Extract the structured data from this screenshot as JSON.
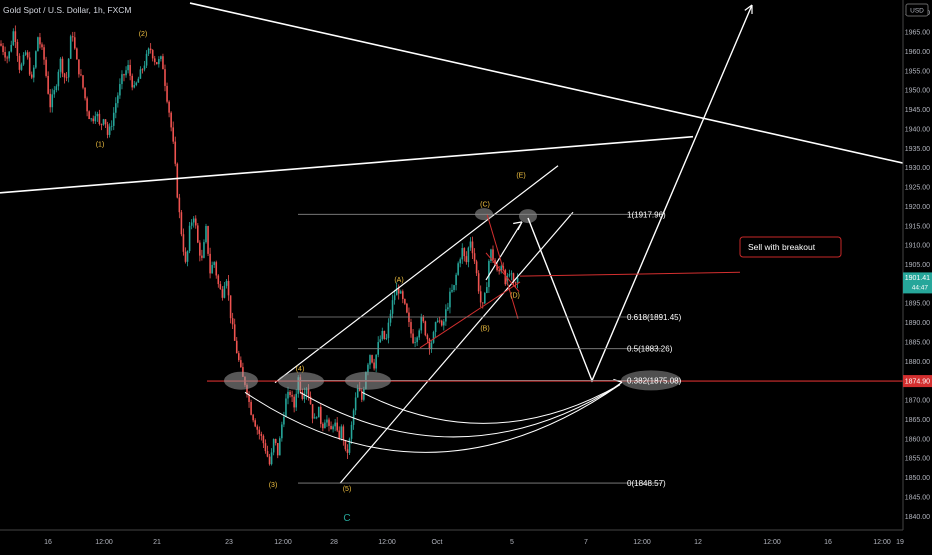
{
  "header": {
    "symbol_title": "Gold Spot / U.S. Dollar, 1h, FXCM"
  },
  "chart_data": {
    "type": "candlestick",
    "currency_badge": "USD",
    "y_axis": {
      "range": [
        1838,
        1972
      ],
      "ticks": [
        1840.0,
        1845.0,
        1850.0,
        1855.0,
        1860.0,
        1865.0,
        1870.0,
        1875.0,
        1880.0,
        1885.0,
        1890.0,
        1895.0,
        1900.0,
        1905.0,
        1910.0,
        1915.0,
        1920.0,
        1925.0,
        1930.0,
        1935.0,
        1940.0,
        1945.0,
        1950.0,
        1955.0,
        1960.0,
        1965.0,
        1970.0
      ],
      "tick_labels": [
        "1840.00",
        "1845.00",
        "1850.00",
        "1855.00",
        "1860.00",
        "1865.00",
        "1870.00",
        "",
        "1880.00",
        "1885.00",
        "1890.00",
        "1895.00",
        "1900.00",
        "1905.00",
        "1910.00",
        "1915.00",
        "1920.00",
        "1925.00",
        "1930.00",
        "1935.00",
        "1940.00",
        "1945.00",
        "1950.00",
        "1955.00",
        "1960.00",
        "1965.00",
        "1970.00"
      ],
      "current_price": "1901.41",
      "countdown": "44:47",
      "marked_level": "1874.90"
    },
    "x_axis": {
      "labels": [
        "16",
        "12:00",
        "21",
        "23",
        "12:00",
        "28",
        "12:00",
        "Oct",
        "5",
        "7",
        "12:00",
        "12",
        "12:00",
        "16",
        "12:00",
        "19"
      ]
    },
    "fibonacci": [
      {
        "level": "1(1917.96)",
        "price": 1917.96
      },
      {
        "level": "0.618(1891.45)",
        "price": 1891.45
      },
      {
        "level": "0.5(1883.26)",
        "price": 1883.26
      },
      {
        "level": "0.382(1875.08)",
        "price": 1875.08
      },
      {
        "level": "0(1848.57)",
        "price": 1848.57
      }
    ],
    "wave_labels": [
      "(1)",
      "(2)",
      "(3)",
      "(4)",
      "(5)",
      "(A)",
      "(B)",
      "(C)",
      "(D)",
      "(E)",
      "C"
    ],
    "annotation": "Sell with breakout",
    "colors": {
      "up": "#26a69a",
      "down": "#ef5350",
      "background": "#000000",
      "level_line": "#d32f2f",
      "wave_label": "#f0c040"
    },
    "price_path": [
      [
        0,
        1962
      ],
      [
        8,
        1958
      ],
      [
        14,
        1966
      ],
      [
        20,
        1955
      ],
      [
        26,
        1960
      ],
      [
        32,
        1952
      ],
      [
        38,
        1964
      ],
      [
        44,
        1958
      ],
      [
        50,
        1946
      ],
      [
        55,
        1950
      ],
      [
        60,
        1958
      ],
      [
        66,
        1952
      ],
      [
        72,
        1966
      ],
      [
        76,
        1958
      ],
      [
        82,
        1952
      ],
      [
        88,
        1944
      ],
      [
        92,
        1942
      ],
      [
        96,
        1945
      ],
      [
        100,
        1940
      ],
      [
        104,
        1944
      ],
      [
        108,
        1938
      ],
      [
        112,
        1942
      ],
      [
        116,
        1947
      ],
      [
        122,
        1953
      ],
      [
        128,
        1956
      ],
      [
        134,
        1950
      ],
      [
        140,
        1954
      ],
      [
        146,
        1958
      ],
      [
        150,
        1961
      ],
      [
        156,
        1957
      ],
      [
        162,
        1958
      ],
      [
        166,
        1950
      ],
      [
        170,
        1943
      ],
      [
        174,
        1934
      ],
      [
        178,
        1921
      ],
      [
        182,
        1912
      ],
      [
        186,
        1904
      ],
      [
        190,
        1915
      ],
      [
        194,
        1918
      ],
      [
        198,
        1910
      ],
      [
        202,
        1906
      ],
      [
        206,
        1914
      ],
      [
        210,
        1903
      ],
      [
        214,
        1906
      ],
      [
        218,
        1900
      ],
      [
        222,
        1897
      ],
      [
        226,
        1903
      ],
      [
        230,
        1893
      ],
      [
        234,
        1886
      ],
      [
        238,
        1881
      ],
      [
        242,
        1876
      ],
      [
        246,
        1874
      ],
      [
        250,
        1868
      ],
      [
        254,
        1865
      ],
      [
        258,
        1862
      ],
      [
        262,
        1860
      ],
      [
        266,
        1857
      ],
      [
        270,
        1853
      ],
      [
        274,
        1860
      ],
      [
        278,
        1856
      ],
      [
        282,
        1864
      ],
      [
        286,
        1870
      ],
      [
        290,
        1872
      ],
      [
        294,
        1868
      ],
      [
        298,
        1876
      ],
      [
        302,
        1871
      ],
      [
        306,
        1874
      ],
      [
        310,
        1870
      ],
      [
        314,
        1864
      ],
      [
        318,
        1868
      ],
      [
        322,
        1863
      ],
      [
        326,
        1866
      ],
      [
        330,
        1861
      ],
      [
        334,
        1865
      ],
      [
        338,
        1860
      ],
      [
        342,
        1863
      ],
      [
        346,
        1855
      ],
      [
        350,
        1860
      ],
      [
        354,
        1868
      ],
      [
        358,
        1873
      ],
      [
        362,
        1870
      ],
      [
        366,
        1878
      ],
      [
        370,
        1882
      ],
      [
        374,
        1879
      ],
      [
        378,
        1884
      ],
      [
        382,
        1887
      ],
      [
        386,
        1885
      ],
      [
        390,
        1892
      ],
      [
        394,
        1897
      ],
      [
        398,
        1899
      ],
      [
        402,
        1896
      ],
      [
        406,
        1893
      ],
      [
        410,
        1888
      ],
      [
        414,
        1885
      ],
      [
        418,
        1888
      ],
      [
        422,
        1891
      ],
      [
        426,
        1887
      ],
      [
        430,
        1884
      ],
      [
        434,
        1887
      ],
      [
        438,
        1892
      ],
      [
        442,
        1888
      ],
      [
        446,
        1893
      ],
      [
        450,
        1897
      ],
      [
        454,
        1899
      ],
      [
        458,
        1905
      ],
      [
        462,
        1909
      ],
      [
        466,
        1905
      ],
      [
        470,
        1912
      ],
      [
        474,
        1907
      ],
      [
        478,
        1900
      ],
      [
        482,
        1893
      ],
      [
        486,
        1898
      ],
      [
        490,
        1909
      ],
      [
        494,
        1906
      ],
      [
        498,
        1902
      ],
      [
        502,
        1906
      ],
      [
        506,
        1900
      ],
      [
        510,
        1903
      ],
      [
        514,
        1899
      ],
      [
        518,
        1901.4
      ]
    ]
  }
}
